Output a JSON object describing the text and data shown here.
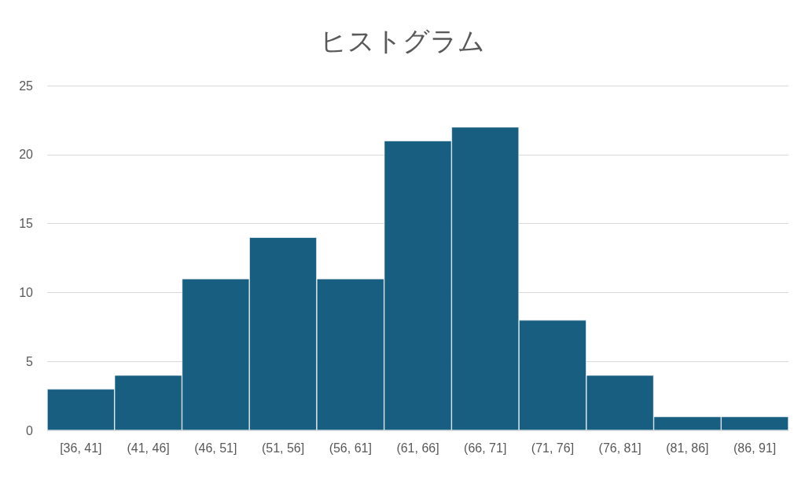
{
  "chart_data": {
    "type": "histogram",
    "title": "ヒストグラム",
    "categories": [
      "[36, 41]",
      "(41, 46]",
      "(46, 51]",
      "(51, 56]",
      "(56, 61]",
      "(61, 66]",
      "(66, 71]",
      "(71, 76]",
      "(76, 81]",
      "(81, 86]",
      "(86, 91]"
    ],
    "values": [
      3,
      4,
      11,
      14,
      11,
      21,
      22,
      8,
      4,
      1,
      1
    ],
    "color": "#175e80",
    "ylim": [
      0,
      25
    ],
    "yticks": [
      0,
      5,
      10,
      15,
      20,
      25
    ],
    "grid": "y"
  }
}
